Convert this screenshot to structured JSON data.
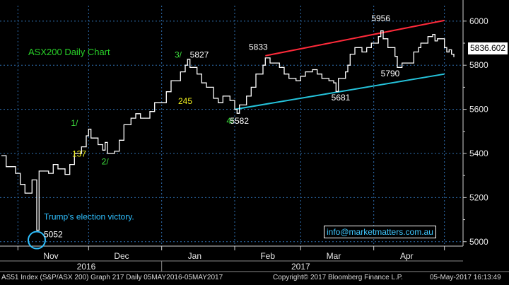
{
  "colors": {
    "background": "#000000",
    "price_line": "#ffffff",
    "grid": "#2f6fb0",
    "resistance": "#ff2a3a",
    "support": "#25c4dc",
    "wave_label": "#3ddc3d",
    "gap_label": "#f2f21e",
    "title": "#28d028",
    "victory": "#2fc0ff",
    "annotation": "#ffffff"
  },
  "chart_data": {
    "type": "line",
    "title": "ASX200 Daily Chart",
    "ylim": [
      4980,
      6070
    ],
    "yticks": [
      5000,
      5200,
      5400,
      5600,
      5800,
      6000
    ],
    "ytick_labels": [
      "5000",
      "5200",
      "5400",
      "5600",
      "5800",
      "6000"
    ],
    "x_start": "2016-10-25",
    "x_end": "2017-05-05",
    "month_ticks": [
      "2016-11-01",
      "2016-12-01",
      "2017-01-01",
      "2017-02-01",
      "2017-03-01",
      "2017-04-01",
      "2017-05-01"
    ],
    "month_labels": [
      {
        "label": "Nov",
        "date": "2016-11-15"
      },
      {
        "label": "Dec",
        "date": "2016-12-15"
      },
      {
        "label": "Jan",
        "date": "2017-01-15"
      },
      {
        "label": "Feb",
        "date": "2017-02-15"
      },
      {
        "label": "Mar",
        "date": "2017-03-15"
      },
      {
        "label": "Apr",
        "date": "2017-04-15"
      }
    ],
    "years": [
      {
        "label": "2016",
        "date": "2016-11-30"
      },
      {
        "label": "2017",
        "date": "2017-03-01"
      }
    ],
    "series": [
      {
        "points": [
          [
            "2016-10-25",
            5390
          ],
          [
            "2016-10-27",
            5340
          ],
          [
            "2016-10-31",
            5310
          ],
          [
            "2016-11-02",
            5260
          ],
          [
            "2016-11-04",
            5220
          ],
          [
            "2016-11-07",
            5280
          ],
          [
            "2016-11-09",
            5052
          ],
          [
            "2016-11-10",
            5320
          ],
          [
            "2016-11-14",
            5310
          ],
          [
            "2016-11-16",
            5350
          ],
          [
            "2016-11-18",
            5330
          ],
          [
            "2016-11-21",
            5305
          ],
          [
            "2016-11-23",
            5350
          ],
          [
            "2016-11-25",
            5400
          ],
          [
            "2016-11-28",
            5430
          ],
          [
            "2016-11-30",
            5480
          ],
          [
            "2016-12-01",
            5510
          ],
          [
            "2016-12-02",
            5470
          ],
          [
            "2016-12-05",
            5440
          ],
          [
            "2016-12-07",
            5415
          ],
          [
            "2016-12-08",
            5450
          ],
          [
            "2016-12-09",
            5400
          ],
          [
            "2016-12-12",
            5410
          ],
          [
            "2016-12-14",
            5460
          ],
          [
            "2016-12-16",
            5530
          ],
          [
            "2016-12-19",
            5560
          ],
          [
            "2016-12-21",
            5580
          ],
          [
            "2016-12-23",
            5560
          ],
          [
            "2016-12-27",
            5590
          ],
          [
            "2016-12-29",
            5630
          ],
          [
            "2017-01-03",
            5680
          ],
          [
            "2017-01-05",
            5730
          ],
          [
            "2017-01-09",
            5770
          ],
          [
            "2017-01-11",
            5800
          ],
          [
            "2017-01-12",
            5827
          ],
          [
            "2017-01-13",
            5790
          ],
          [
            "2017-01-16",
            5760
          ],
          [
            "2017-01-18",
            5720
          ],
          [
            "2017-01-20",
            5700
          ],
          [
            "2017-01-23",
            5650
          ],
          [
            "2017-01-25",
            5630
          ],
          [
            "2017-01-27",
            5660
          ],
          [
            "2017-01-30",
            5640
          ],
          [
            "2017-02-01",
            5600
          ],
          [
            "2017-02-02",
            5582
          ],
          [
            "2017-02-03",
            5620
          ],
          [
            "2017-02-06",
            5660
          ],
          [
            "2017-02-08",
            5700
          ],
          [
            "2017-02-10",
            5760
          ],
          [
            "2017-02-13",
            5800
          ],
          [
            "2017-02-14",
            5833
          ],
          [
            "2017-02-16",
            5810
          ],
          [
            "2017-02-20",
            5790
          ],
          [
            "2017-02-22",
            5760
          ],
          [
            "2017-02-24",
            5740
          ],
          [
            "2017-02-27",
            5730
          ],
          [
            "2017-03-01",
            5750
          ],
          [
            "2017-03-03",
            5770
          ],
          [
            "2017-03-06",
            5780
          ],
          [
            "2017-03-08",
            5760
          ],
          [
            "2017-03-10",
            5740
          ],
          [
            "2017-03-13",
            5730
          ],
          [
            "2017-03-15",
            5720
          ],
          [
            "2017-03-16",
            5681
          ],
          [
            "2017-03-17",
            5740
          ],
          [
            "2017-03-20",
            5770
          ],
          [
            "2017-03-21",
            5800
          ],
          [
            "2017-03-22",
            5850
          ],
          [
            "2017-03-24",
            5880
          ],
          [
            "2017-03-27",
            5860
          ],
          [
            "2017-03-29",
            5880
          ],
          [
            "2017-03-31",
            5900
          ],
          [
            "2017-04-03",
            5930
          ],
          [
            "2017-04-04",
            5956
          ],
          [
            "2017-04-05",
            5920
          ],
          [
            "2017-04-07",
            5880
          ],
          [
            "2017-04-10",
            5840
          ],
          [
            "2017-04-11",
            5790
          ],
          [
            "2017-04-13",
            5810
          ],
          [
            "2017-04-18",
            5860
          ],
          [
            "2017-04-20",
            5880
          ],
          [
            "2017-04-21",
            5900
          ],
          [
            "2017-04-24",
            5930
          ],
          [
            "2017-04-26",
            5940
          ],
          [
            "2017-04-27",
            5910
          ],
          [
            "2017-04-28",
            5920
          ],
          [
            "2017-05-01",
            5880
          ],
          [
            "2017-05-02",
            5860
          ],
          [
            "2017-05-03",
            5870
          ],
          [
            "2017-05-04",
            5850
          ],
          [
            "2017-05-05",
            5836.602
          ]
        ]
      }
    ],
    "trendlines": [
      {
        "name": "resistance",
        "from": [
          "2017-02-14",
          5843
        ],
        "to": [
          "2017-05-01",
          6003
        ]
      },
      {
        "name": "support",
        "from": [
          "2017-02-01",
          5600
        ],
        "to": [
          "2017-05-01",
          5760
        ]
      }
    ],
    "annotations": [
      {
        "text": "1/",
        "date": "2016-11-25",
        "value": "5525",
        "kind": "wave"
      },
      {
        "text": "2/",
        "date": "2016-12-08",
        "value": "5350",
        "kind": "wave"
      },
      {
        "text": "3/",
        "date": "2017-01-08",
        "value": "5835",
        "kind": "wave"
      },
      {
        "text": "4/",
        "date": "2017-01-30",
        "value": "5535",
        "kind": "wave"
      },
      {
        "text": "137",
        "date": "2016-11-27",
        "value": "5385",
        "kind": "gap"
      },
      {
        "text": "245",
        "date": "2017-01-11",
        "value": "5625",
        "kind": "gap"
      },
      {
        "text": "5827",
        "date": "2017-01-17",
        "value": "5835",
        "kind": "level"
      },
      {
        "text": "5582",
        "date": "2017-02-03",
        "value": "5535",
        "kind": "level"
      },
      {
        "text": "5833",
        "date": "2017-02-11",
        "value": "5870",
        "kind": "level"
      },
      {
        "text": "5681",
        "date": "2017-03-18",
        "value": "5640",
        "kind": "level"
      },
      {
        "text": "5956",
        "date": "2017-04-04",
        "value": "6000",
        "kind": "level"
      },
      {
        "text": "5790",
        "date": "2017-04-08",
        "value": "5750",
        "kind": "level"
      },
      {
        "text": "5052",
        "date": "2016-11-12",
        "value": "5020",
        "kind": "level"
      },
      {
        "text": "Trump's election victory.",
        "date": "2016-11-12",
        "value": "5100",
        "kind": "event"
      }
    ],
    "last_value": "5836.602"
  },
  "footer": {
    "left": "AS51 Index (S&P/ASX 200) Graph 217  Daily 05MAY2016-05MAY2017",
    "center": "Copyright© 2017 Bloomberg Finance L.P.",
    "right": "05-May-2017 16:13:49"
  },
  "contact_box": "info@marketmatters.com.au"
}
